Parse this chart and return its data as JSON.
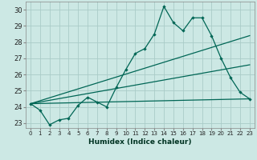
{
  "xlabel": "Humidex (Indice chaleur)",
  "bg_color": "#cce8e4",
  "grid_color": "#aaccc8",
  "line_color": "#006655",
  "x": [
    0,
    1,
    2,
    3,
    4,
    5,
    6,
    7,
    8,
    9,
    10,
    11,
    12,
    13,
    14,
    15,
    16,
    17,
    18,
    19,
    20,
    21,
    22,
    23
  ],
  "series1": [
    24.2,
    23.8,
    22.9,
    23.2,
    23.3,
    24.1,
    24.6,
    24.3,
    24.0,
    25.2,
    26.3,
    27.3,
    27.6,
    28.5,
    30.2,
    29.2,
    28.7,
    29.5,
    29.5,
    28.4,
    27.0,
    25.8,
    24.9,
    24.5
  ],
  "line1_pts": [
    [
      0,
      24.2
    ],
    [
      23,
      28.4
    ]
  ],
  "line2_pts": [
    [
      0,
      24.2
    ],
    [
      23,
      26.6
    ]
  ],
  "line3_pts": [
    [
      0,
      24.2
    ],
    [
      23,
      24.5
    ]
  ],
  "ylim": [
    22.7,
    30.5
  ],
  "xlim": [
    -0.5,
    23.5
  ],
  "yticks": [
    23,
    24,
    25,
    26,
    27,
    28,
    29,
    30
  ],
  "xticks": [
    0,
    1,
    2,
    3,
    4,
    5,
    6,
    7,
    8,
    9,
    10,
    11,
    12,
    13,
    14,
    15,
    16,
    17,
    18,
    19,
    20,
    21,
    22,
    23
  ]
}
